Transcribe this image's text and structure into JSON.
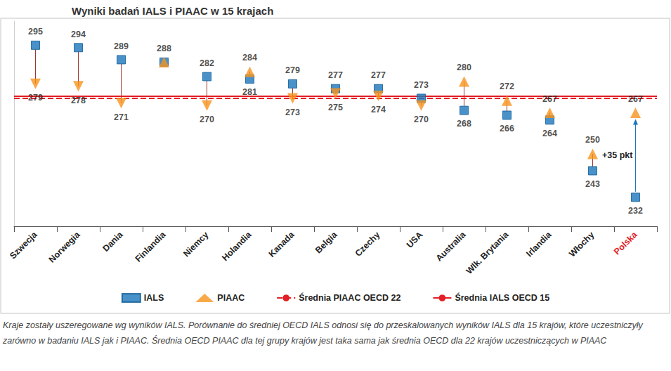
{
  "chart_data": {
    "type": "dumbbell",
    "title": "Wyniki badań IALS i PIAAC w 15 krajach",
    "categories": [
      "Szwecja",
      "Norwegia",
      "Dania",
      "Finlandia",
      "Niemcy",
      "Holandia",
      "Kanada",
      "Belgia",
      "Czechy",
      "USA",
      "Australia",
      "Wlk. Brytania",
      "Irlandia",
      "Włochy",
      "Polska"
    ],
    "series": [
      {
        "name": "IALS",
        "color": "#1b75bc",
        "marker": "square",
        "values": [
          295,
          294,
          289,
          288,
          282,
          281,
          279,
          277,
          277,
          273,
          268,
          266,
          264,
          243,
          232
        ]
      },
      {
        "name": "PIAAC",
        "color": "#f7941d",
        "marker": "triangle",
        "values": [
          279,
          278,
          271,
          288,
          270,
          284,
          273,
          275,
          274,
          270,
          280,
          272,
          267,
          250,
          267
        ]
      }
    ],
    "reference_lines": [
      {
        "name": "Średnia PIAAC OECD 22",
        "value": 273,
        "color": "#e31e24",
        "line_style": "dashed"
      },
      {
        "name": "Średnia IALS OECD 15",
        "value": 274,
        "color": "#e31e24",
        "line_style": "solid"
      }
    ],
    "annotations": [
      {
        "text": "+35 pkt",
        "category": "Polska"
      }
    ],
    "ylim": [
      220,
      305
    ],
    "tick_labels": "x",
    "data_labels": true,
    "grid": false,
    "legend": "bottom",
    "footnote": "Kraje zostały uszeregowane wg wyników IALS. Porównanie do średniej OECD IALS odnosi się do przeskalowanych wyników IALS dla 15 krajów, które uczestniczyły zarówno w badaniu IALS jak i PIAAC. Średnia OECD PIAAC dla tej grupy krajów jest taka sama jak średnia OECD dla 22 krajów uczestniczących w PIAAC"
  }
}
